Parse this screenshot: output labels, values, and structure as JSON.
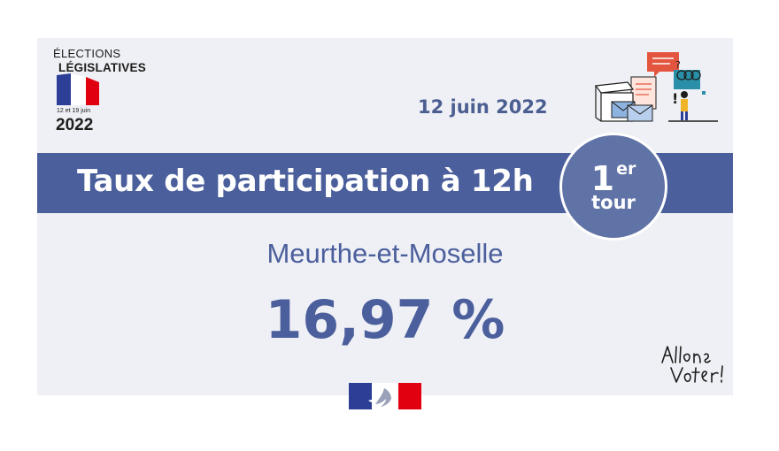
{
  "logo": {
    "line1": "ÉLECTIONS",
    "line2": "LÉGISLATIVES",
    "dates": "12 et 19 juin",
    "year": "2022",
    "icon": "french-flag-icon"
  },
  "date": "12 juin 2022",
  "banner": {
    "title": "Taux de participation à 12h"
  },
  "round": {
    "number": "1",
    "suffix": "er",
    "word": "tour"
  },
  "department": "Meurthe-et-Moselle",
  "rate": "16,97 %",
  "colors": {
    "primary": "#4b5f9c",
    "background": "#eff0f6",
    "flag_blue": "#2d3e97",
    "flag_red": "#e1000f",
    "illustration_red": "#e4553f"
  },
  "icons": {
    "illustration": "ballot-box-voting-illustration",
    "marianne": "marianne-republique-francaise-logo",
    "allons_voter": "allons-voter-signature"
  }
}
